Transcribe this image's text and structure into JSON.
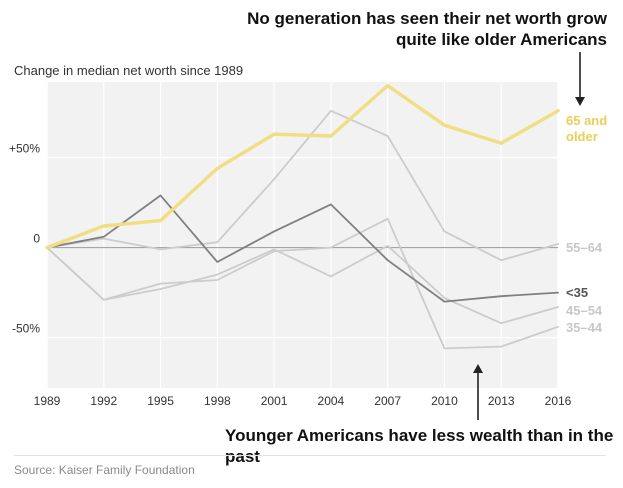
{
  "annotations": {
    "top_line1": "No generation has seen their net worth grow",
    "top_line2": "quite like older Americans",
    "bottom": "Younger Americans have less wealth than in the past"
  },
  "subtitle": "Change in median net worth since 1989",
  "source": "Source: Kaiser Family Foundation",
  "colors": {
    "plot_bg": "#f2f2f2",
    "gridline": "#ffffff",
    "zero_line": "#9a9a9a",
    "older": "#f0de80",
    "older_label": "#e8cf56",
    "dark": "#808080",
    "light": "#cccccc"
  },
  "chart_data": {
    "type": "line",
    "x": [
      1989,
      1992,
      1995,
      1998,
      2001,
      2004,
      2007,
      2010,
      2013,
      2016
    ],
    "ylim": [
      -78,
      92
    ],
    "yticks": [
      {
        "value": 50,
        "label": "+50%"
      },
      {
        "value": 0,
        "label": "0"
      },
      {
        "value": -50,
        "label": "-50%"
      }
    ],
    "series": [
      {
        "name": "55–64",
        "color": "#cccccc",
        "label_color": "#c8c8c8",
        "values": [
          0,
          5,
          -1,
          3,
          38,
          76,
          62,
          9,
          -7,
          2
        ]
      },
      {
        "name": "45–54",
        "color": "#cccccc",
        "label_color": "#c8c8c8",
        "values": [
          0,
          -29,
          -23,
          -15,
          -1,
          -16,
          1,
          -28,
          -42,
          -33
        ]
      },
      {
        "name": "35–44",
        "color": "#cccccc",
        "label_color": "#c8c8c8",
        "values": [
          0,
          -29,
          -20,
          -18,
          -2,
          0,
          16,
          -56,
          -55,
          -44
        ]
      },
      {
        "name": "<35",
        "color": "#808080",
        "label_color": "#555555",
        "values": [
          0,
          6,
          29,
          -8,
          9,
          24,
          -7,
          -30,
          -27,
          -25
        ]
      },
      {
        "name": "65 and older",
        "color": "#f0de80",
        "label_color": "#e8cf56",
        "values": [
          0,
          12,
          15,
          44,
          63,
          62,
          90,
          68,
          58,
          76
        ]
      }
    ]
  }
}
